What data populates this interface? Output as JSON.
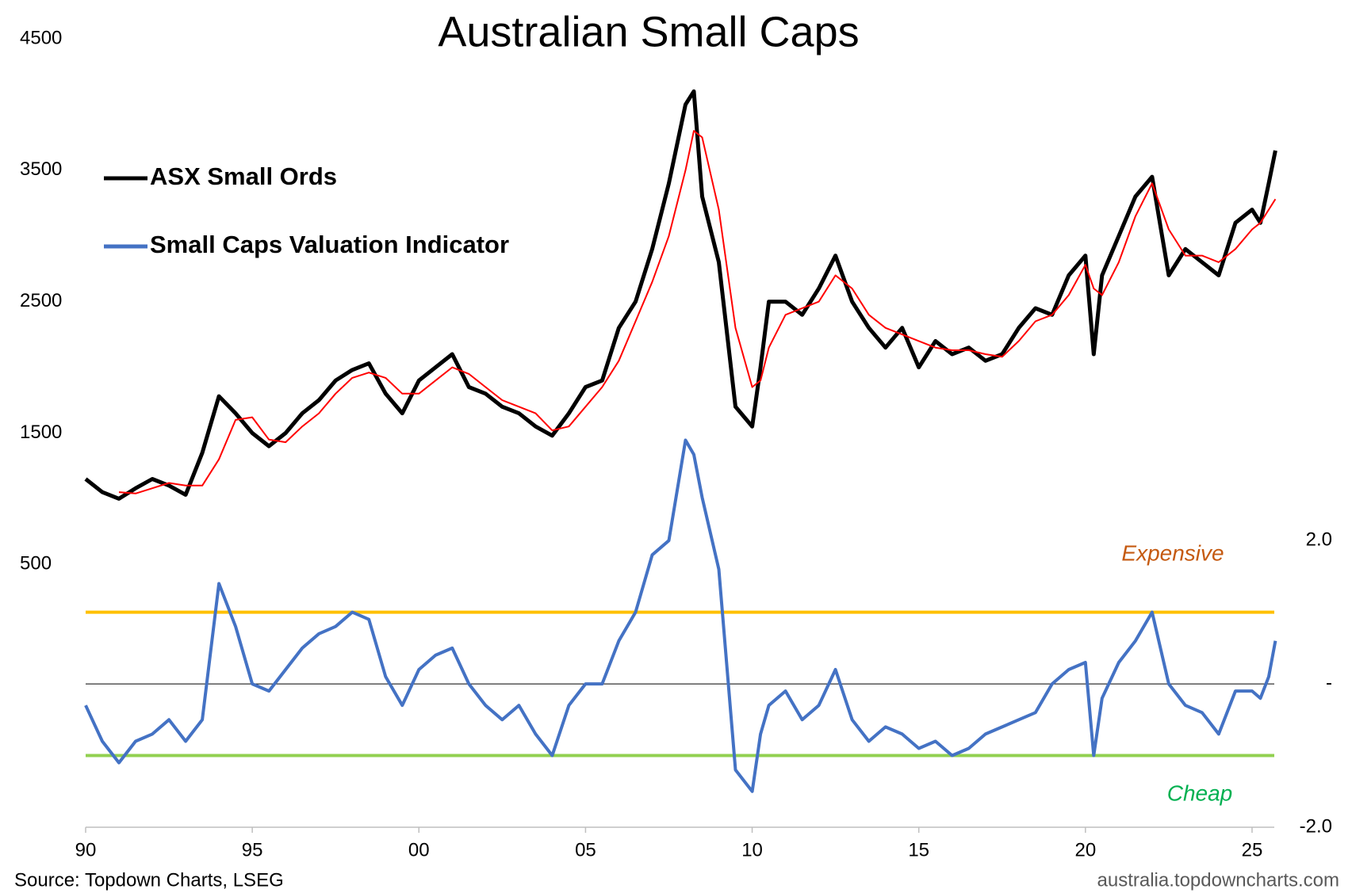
{
  "chart_data": {
    "type": "line",
    "title": "Australian Small Caps",
    "source": "Source: Topdown Charts, LSEG",
    "watermark": "australia.topdowncharts.com",
    "legend": "upper left",
    "x": [
      1990,
      1990.5,
      1991,
      1991.5,
      1992,
      1992.5,
      1993,
      1993.5,
      1994,
      1994.5,
      1995,
      1995.5,
      1996,
      1996.5,
      1997,
      1997.5,
      1998,
      1998.5,
      1999,
      1999.5,
      2000,
      2000.5,
      2001,
      2001.5,
      2002,
      2002.5,
      2003,
      2003.5,
      2004,
      2004.5,
      2005,
      2005.5,
      2006,
      2006.5,
      2007,
      2007.5,
      2008,
      2008.25,
      2008.5,
      2009,
      2009.5,
      2010,
      2010.25,
      2010.5,
      2011,
      2011.5,
      2012,
      2012.5,
      2013,
      2013.5,
      2014,
      2014.5,
      2015,
      2015.5,
      2016,
      2016.5,
      2017,
      2017.5,
      2018,
      2018.5,
      2019,
      2019.5,
      2020,
      2020.25,
      2020.5,
      2021,
      2021.5,
      2022,
      2022.5,
      2023,
      2023.5,
      2024,
      2024.5,
      2025,
      2025.25,
      2025.5,
      2025.7
    ],
    "xlim": [
      1990,
      2026
    ],
    "xticks": [
      {
        "value": 1990,
        "label": "90"
      },
      {
        "value": 1995,
        "label": "95"
      },
      {
        "value": 2000,
        "label": "00"
      },
      {
        "value": 2005,
        "label": "05"
      },
      {
        "value": 2010,
        "label": "10"
      },
      {
        "value": 2015,
        "label": "15"
      },
      {
        "value": 2020,
        "label": "20"
      },
      {
        "value": 2025,
        "label": "25"
      }
    ],
    "ylim": [
      -1500,
      4500
    ],
    "yticks": [
      500,
      1500,
      2500,
      3500,
      4500
    ],
    "y2lim": [
      -2,
      9
    ],
    "y2ticks": [
      {
        "value": 2,
        "label": "2.0"
      },
      {
        "value": 0,
        "label": "-"
      },
      {
        "value": -2,
        "label": "-2.0"
      }
    ],
    "series": [
      {
        "name": "ASX Small Ords",
        "color": "#000000",
        "width": 5,
        "values": [
          1150,
          1050,
          1000,
          1080,
          1150,
          1100,
          1030,
          1350,
          1780,
          1650,
          1500,
          1400,
          1500,
          1650,
          1750,
          1900,
          1980,
          2030,
          1800,
          1650,
          1900,
          2000,
          2100,
          1850,
          1800,
          1700,
          1650,
          1550,
          1480,
          1650,
          1850,
          1900,
          2300,
          2500,
          2900,
          3400,
          4000,
          4100,
          3300,
          2800,
          1700,
          1550,
          2000,
          2500,
          2500,
          2400,
          2600,
          2850,
          2500,
          2300,
          2150,
          2300,
          2000,
          2200,
          2100,
          2150,
          2050,
          2100,
          2300,
          2450,
          2400,
          2700,
          2850,
          2100,
          2700,
          3000,
          3300,
          3450,
          2700,
          2900,
          2800,
          2700,
          3100,
          3200,
          3100,
          3400,
          3650
        ]
      },
      {
        "color": "#ff0000",
        "width": 2,
        "values": [
          null,
          null,
          1050,
          1040,
          1080,
          1120,
          1100,
          1100,
          1300,
          1600,
          1620,
          1450,
          1430,
          1550,
          1650,
          1800,
          1920,
          1960,
          1920,
          1800,
          1800,
          1900,
          2000,
          1950,
          1850,
          1750,
          1700,
          1650,
          1520,
          1550,
          1700,
          1850,
          2050,
          2350,
          2650,
          3000,
          3500,
          3800,
          3750,
          3200,
          2300,
          1850,
          1900,
          2150,
          2400,
          2450,
          2500,
          2700,
          2600,
          2400,
          2300,
          2250,
          2200,
          2150,
          2130,
          2130,
          2100,
          2080,
          2200,
          2350,
          2400,
          2550,
          2780,
          2600,
          2550,
          2800,
          3150,
          3400,
          3050,
          2850,
          2850,
          2800,
          2900,
          3050,
          3100,
          3200,
          3280
        ]
      },
      {
        "name": "Small Caps Valuation Indicator",
        "color": "#4472c4",
        "width": 4,
        "axis": "y2",
        "values": [
          -0.3,
          -0.8,
          -1.1,
          -0.8,
          -0.7,
          -0.5,
          -0.8,
          -0.5,
          1.4,
          0.8,
          0.0,
          -0.1,
          0.2,
          0.5,
          0.7,
          0.8,
          1.0,
          0.9,
          0.1,
          -0.3,
          0.2,
          0.4,
          0.5,
          0.0,
          -0.3,
          -0.5,
          -0.3,
          -0.7,
          -1.0,
          -0.3,
          0.0,
          0.0,
          0.6,
          1.0,
          1.8,
          2.0,
          3.4,
          3.2,
          2.6,
          1.6,
          -1.2,
          -1.5,
          -0.7,
          -0.3,
          -0.1,
          -0.5,
          -0.3,
          0.2,
          -0.5,
          -0.8,
          -0.6,
          -0.7,
          -0.9,
          -0.8,
          -1.0,
          -0.9,
          -0.7,
          -0.6,
          -0.5,
          -0.4,
          0.0,
          0.2,
          0.3,
          -1.0,
          -0.2,
          0.3,
          0.6,
          1.0,
          0.0,
          -0.3,
          -0.4,
          -0.7,
          -0.1,
          -0.1,
          -0.2,
          0.1,
          0.6
        ]
      }
    ],
    "reference_lines": [
      {
        "value": 1,
        "axis": "y2",
        "color": "#ffc000",
        "width": 4
      },
      {
        "value": -1,
        "axis": "y2",
        "color": "#92d050",
        "width": 4
      },
      {
        "value": 0,
        "axis": "y2",
        "color": "#000000",
        "width": 1
      }
    ],
    "annotations": [
      {
        "text": "Expensive",
        "color": "#c55a11"
      },
      {
        "text": "Cheap",
        "color": "#00b050"
      }
    ]
  }
}
